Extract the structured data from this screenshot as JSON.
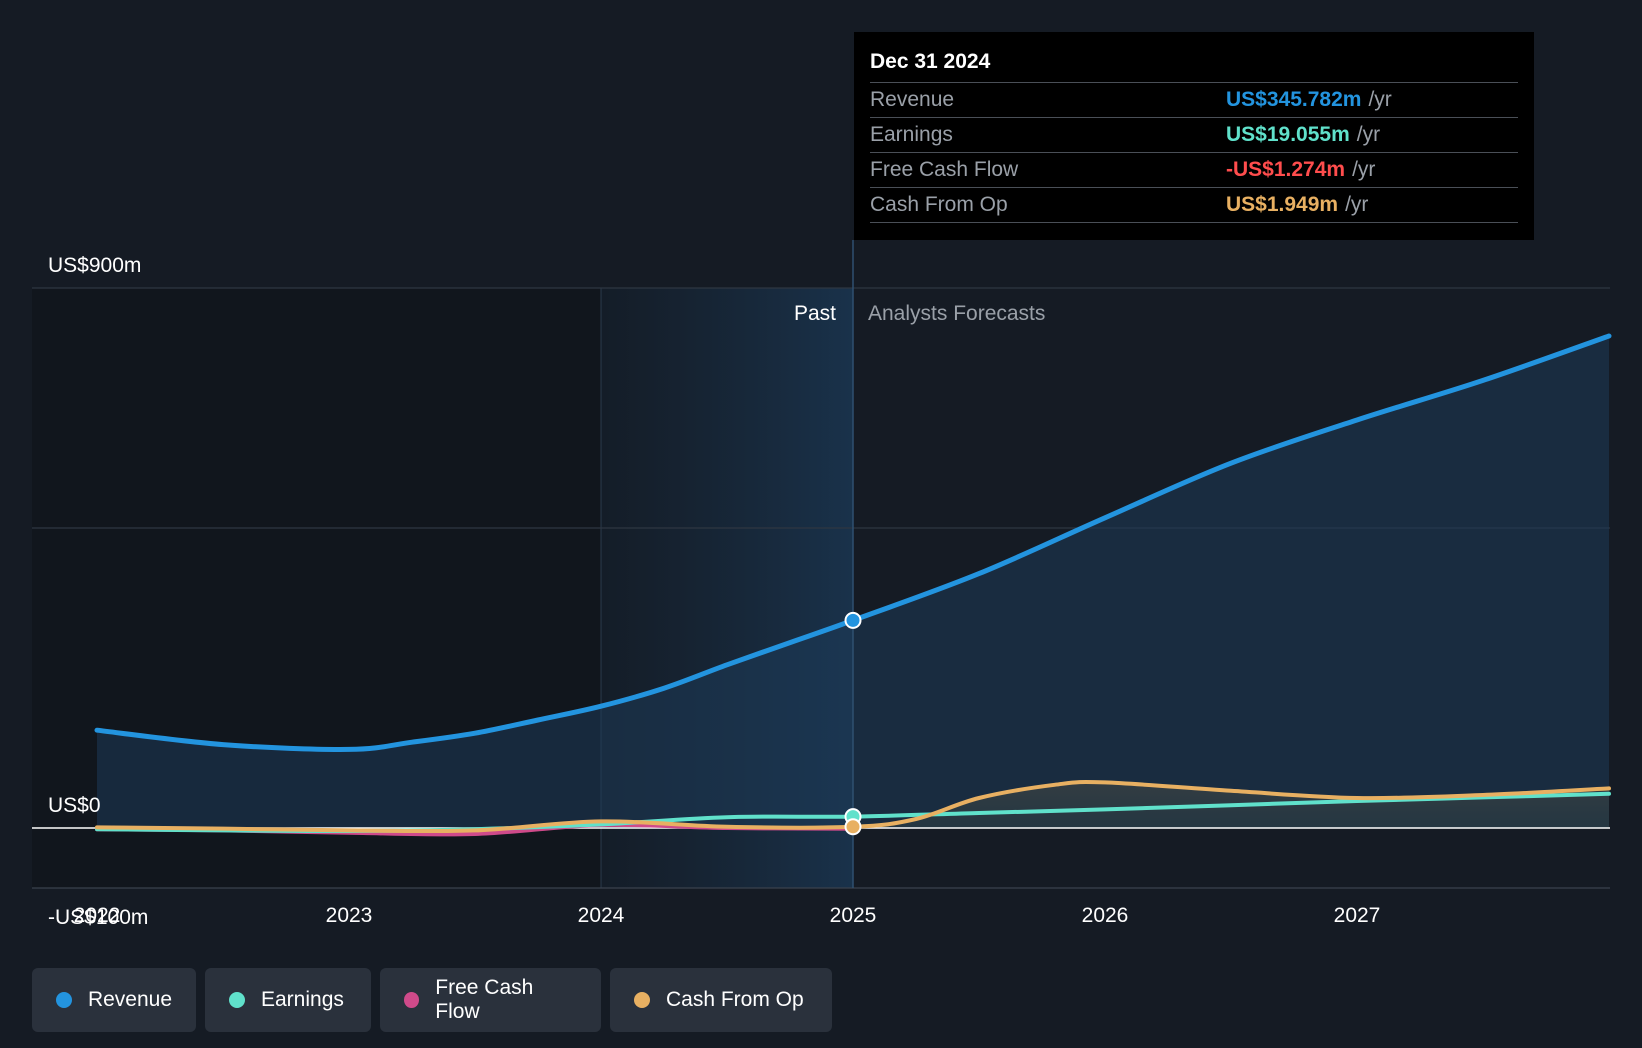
{
  "colors": {
    "background": "#151b24",
    "revenue": "#2394df",
    "earnings": "#60e1cb",
    "free_cash_flow": "#cf4a8a",
    "cash_from_op": "#e8b062",
    "negative": "#ff4d4d",
    "grid": "#2f3742",
    "zero_line": "#ffffff"
  },
  "tooltip": {
    "date": "Dec 31 2024",
    "rows": [
      {
        "label": "Revenue",
        "value": "US$345.782m",
        "unit": "/yr",
        "color": "#2394df"
      },
      {
        "label": "Earnings",
        "value": "US$19.055m",
        "unit": "/yr",
        "color": "#60e1cb"
      },
      {
        "label": "Free Cash Flow",
        "value": "-US$1.274m",
        "unit": "/yr",
        "color": "#ff4d4d"
      },
      {
        "label": "Cash From Op",
        "value": "US$1.949m",
        "unit": "/yr",
        "color": "#e8b062"
      }
    ]
  },
  "legend": [
    {
      "label": "Revenue",
      "color": "#2394df"
    },
    {
      "label": "Earnings",
      "color": "#60e1cb"
    },
    {
      "label": "Free Cash Flow",
      "color": "#cf4a8a"
    },
    {
      "label": "Cash From Op",
      "color": "#e8b062"
    }
  ],
  "chart_data": {
    "type": "line",
    "title": "",
    "xlabel": "",
    "ylabel": "",
    "xlim": [
      2022.0,
      2028.0
    ],
    "ylim": [
      -100,
      900
    ],
    "y_ticks": [
      {
        "value": 900,
        "label": "US$900m"
      },
      {
        "value": 0,
        "label": "US$0"
      },
      {
        "value": -100,
        "label": "-US$100m"
      }
    ],
    "x_ticks": [
      {
        "value": 2022,
        "label": "2022"
      },
      {
        "value": 2023,
        "label": "2023"
      },
      {
        "value": 2024,
        "label": "2024"
      },
      {
        "value": 2025,
        "label": "2025"
      },
      {
        "value": 2026,
        "label": "2026"
      },
      {
        "value": 2027,
        "label": "2027"
      }
    ],
    "gridlines": [
      900,
      500
    ],
    "past_label": "Past",
    "forecast_label": "Analysts Forecasts",
    "divider_x": 2025.0,
    "highlight_start_x": 2024.0,
    "series": [
      {
        "name": "Revenue",
        "key": "revenue",
        "color": "#2394df",
        "fill": true,
        "points": [
          [
            2022.0,
            163
          ],
          [
            2022.5,
            139
          ],
          [
            2023.0,
            131
          ],
          [
            2023.25,
            143
          ],
          [
            2023.5,
            158
          ],
          [
            2023.75,
            180
          ],
          [
            2024.0,
            203
          ],
          [
            2024.25,
            233
          ],
          [
            2024.5,
            272
          ],
          [
            2024.75,
            309
          ],
          [
            2025.0,
            346
          ],
          [
            2025.5,
            424
          ],
          [
            2026.0,
            517
          ],
          [
            2026.5,
            608
          ],
          [
            2027.0,
            680
          ],
          [
            2027.5,
            746
          ],
          [
            2028.0,
            820
          ]
        ]
      },
      {
        "name": "Earnings",
        "key": "earnings",
        "color": "#60e1cb",
        "fill": false,
        "points": [
          [
            2022.0,
            -2
          ],
          [
            2022.5,
            -4
          ],
          [
            2023.0,
            -5
          ],
          [
            2023.5,
            -2
          ],
          [
            2024.0,
            6
          ],
          [
            2024.5,
            18
          ],
          [
            2025.0,
            19
          ],
          [
            2025.5,
            25
          ],
          [
            2026.0,
            31
          ],
          [
            2026.5,
            38
          ],
          [
            2027.0,
            45
          ],
          [
            2027.5,
            51
          ],
          [
            2028.0,
            57
          ]
        ]
      },
      {
        "name": "Free Cash Flow",
        "key": "free_cash_flow",
        "color": "#cf4a8a",
        "fill": false,
        "points": [
          [
            2022.0,
            -2
          ],
          [
            2022.5,
            -4
          ],
          [
            2023.0,
            -8
          ],
          [
            2023.5,
            -10
          ],
          [
            2024.0,
            5
          ],
          [
            2024.5,
            0
          ],
          [
            2025.0,
            -1.3
          ]
        ]
      },
      {
        "name": "Cash From Op",
        "key": "cash_from_op",
        "color": "#e8b062",
        "fill": true,
        "points": [
          [
            2022.0,
            1
          ],
          [
            2022.5,
            -1
          ],
          [
            2023.0,
            -4
          ],
          [
            2023.5,
            -4
          ],
          [
            2024.0,
            11
          ],
          [
            2024.5,
            2
          ],
          [
            2025.0,
            2
          ],
          [
            2025.25,
            15
          ],
          [
            2025.5,
            50
          ],
          [
            2025.8,
            72
          ],
          [
            2026.0,
            76
          ],
          [
            2026.5,
            62
          ],
          [
            2027.0,
            50
          ],
          [
            2027.5,
            55
          ],
          [
            2028.0,
            66
          ]
        ]
      }
    ],
    "markers": [
      {
        "series": "Revenue",
        "x": 2025.0,
        "y": 346,
        "color": "#2394df"
      },
      {
        "series": "Earnings",
        "x": 2025.0,
        "y": 19,
        "color": "#60e1cb"
      },
      {
        "series": "Cash From Op",
        "x": 2025.0,
        "y": 2,
        "color": "#e8b062"
      }
    ]
  }
}
